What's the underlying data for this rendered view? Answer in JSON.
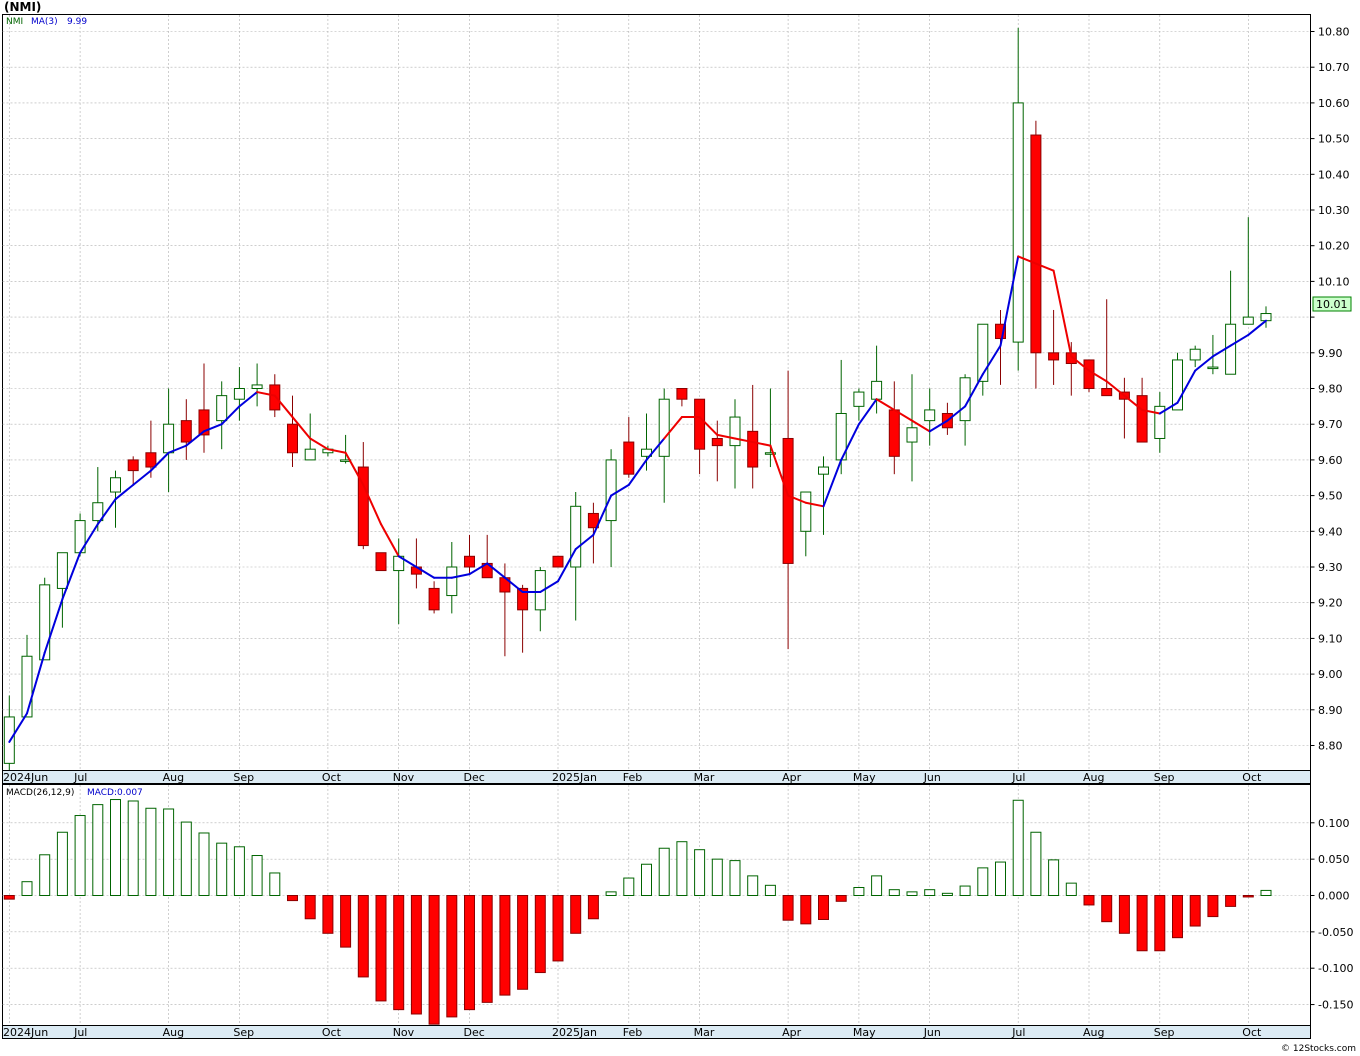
{
  "title": "(NMI)",
  "footer": "© 12Stocks.com",
  "chart_data": [
    {
      "type": "candlestick",
      "name": "price-panel",
      "legend": {
        "symbol": "NMI",
        "ma_label": "MA(3)",
        "ma_value": "9.99"
      },
      "last_price": "10.01",
      "ylim": [
        8.72,
        10.83
      ],
      "y_ticks": [
        8.8,
        8.9,
        9.0,
        9.1,
        9.2,
        9.3,
        9.4,
        9.5,
        9.6,
        9.7,
        9.8,
        9.9,
        10.0,
        10.1,
        10.2,
        10.3,
        10.4,
        10.5,
        10.6,
        10.7,
        10.8
      ],
      "y_tick_labels": [
        "8.80",
        "8.90",
        "9.00",
        "9.10",
        "9.20",
        "9.30",
        "9.40",
        "9.50",
        "9.60",
        "9.70",
        "9.80",
        "9.90",
        "",
        "10.10",
        "10.20",
        "10.30",
        "10.40",
        "10.50",
        "10.60",
        "10.70",
        "10.80"
      ],
      "x_labels": [
        "2024Jun",
        "Jul",
        "Aug",
        "Sep",
        "Oct",
        "Nov",
        "Dec",
        "2025Jan",
        "Feb",
        "Mar",
        "Apr",
        "May",
        "Jun",
        "Jul",
        "Aug",
        "Sep",
        "Oct"
      ],
      "x_label_weeks": [
        0,
        4,
        9,
        13,
        18,
        22,
        26,
        31,
        35,
        39,
        44,
        48,
        52,
        57,
        61,
        65,
        70
      ],
      "candles": [
        {
          "o": 8.75,
          "h": 8.94,
          "l": 8.73,
          "c": 8.88
        },
        {
          "o": 8.88,
          "h": 9.11,
          "l": 8.88,
          "c": 9.05
        },
        {
          "o": 9.04,
          "h": 9.27,
          "l": 9.04,
          "c": 9.25
        },
        {
          "o": 9.24,
          "h": 9.34,
          "l": 9.13,
          "c": 9.34
        },
        {
          "o": 9.34,
          "h": 9.45,
          "l": 9.33,
          "c": 9.43
        },
        {
          "o": 9.43,
          "h": 9.58,
          "l": 9.4,
          "c": 9.48
        },
        {
          "o": 9.51,
          "h": 9.57,
          "l": 9.41,
          "c": 9.55
        },
        {
          "o": 9.6,
          "h": 9.61,
          "l": 9.53,
          "c": 9.57
        },
        {
          "o": 9.62,
          "h": 9.71,
          "l": 9.55,
          "c": 9.58
        },
        {
          "o": 9.62,
          "h": 9.8,
          "l": 9.51,
          "c": 9.7
        },
        {
          "o": 9.71,
          "h": 9.77,
          "l": 9.6,
          "c": 9.65
        },
        {
          "o": 9.74,
          "h": 9.87,
          "l": 9.62,
          "c": 9.67
        },
        {
          "o": 9.71,
          "h": 9.82,
          "l": 9.63,
          "c": 9.78
        },
        {
          "o": 9.77,
          "h": 9.86,
          "l": 9.71,
          "c": 9.8
        },
        {
          "o": 9.8,
          "h": 9.87,
          "l": 9.75,
          "c": 9.81
        },
        {
          "o": 9.81,
          "h": 9.84,
          "l": 9.72,
          "c": 9.74
        },
        {
          "o": 9.7,
          "h": 9.78,
          "l": 9.58,
          "c": 9.62
        },
        {
          "o": 9.6,
          "h": 9.73,
          "l": 9.6,
          "c": 9.63
        },
        {
          "o": 9.62,
          "h": 9.64,
          "l": 9.61,
          "c": 9.63
        },
        {
          "o": 9.6,
          "h": 9.67,
          "l": 9.59,
          "c": 9.6
        },
        {
          "o": 9.58,
          "h": 9.65,
          "l": 9.35,
          "c": 9.36
        },
        {
          "o": 9.34,
          "h": 9.34,
          "l": 9.29,
          "c": 9.29
        },
        {
          "o": 9.29,
          "h": 9.38,
          "l": 9.14,
          "c": 9.33
        },
        {
          "o": 9.3,
          "h": 9.38,
          "l": 9.24,
          "c": 9.28
        },
        {
          "o": 9.24,
          "h": 9.26,
          "l": 9.17,
          "c": 9.18
        },
        {
          "o": 9.22,
          "h": 9.37,
          "l": 9.17,
          "c": 9.3
        },
        {
          "o": 9.33,
          "h": 9.39,
          "l": 9.28,
          "c": 9.3
        },
        {
          "o": 9.31,
          "h": 9.39,
          "l": 9.28,
          "c": 9.27
        },
        {
          "o": 9.27,
          "h": 9.31,
          "l": 9.05,
          "c": 9.23
        },
        {
          "o": 9.24,
          "h": 9.25,
          "l": 9.06,
          "c": 9.18
        },
        {
          "o": 9.18,
          "h": 9.3,
          "l": 9.12,
          "c": 9.29
        },
        {
          "o": 9.33,
          "h": 9.33,
          "l": 9.3,
          "c": 9.3
        },
        {
          "o": 9.3,
          "h": 9.51,
          "l": 9.15,
          "c": 9.47
        },
        {
          "o": 9.45,
          "h": 9.48,
          "l": 9.31,
          "c": 9.41
        },
        {
          "o": 9.43,
          "h": 9.63,
          "l": 9.3,
          "c": 9.6
        },
        {
          "o": 9.65,
          "h": 9.72,
          "l": 9.55,
          "c": 9.56
        },
        {
          "o": 9.61,
          "h": 9.73,
          "l": 9.57,
          "c": 9.63
        },
        {
          "o": 9.61,
          "h": 9.8,
          "l": 9.48,
          "c": 9.77
        },
        {
          "o": 9.8,
          "h": 9.8,
          "l": 9.75,
          "c": 9.77
        },
        {
          "o": 9.77,
          "h": 9.77,
          "l": 9.56,
          "c": 9.63
        },
        {
          "o": 9.66,
          "h": 9.71,
          "l": 9.54,
          "c": 9.64
        },
        {
          "o": 9.64,
          "h": 9.77,
          "l": 9.52,
          "c": 9.72
        },
        {
          "o": 9.68,
          "h": 9.81,
          "l": 9.52,
          "c": 9.58
        },
        {
          "o": 9.62,
          "h": 9.8,
          "l": 9.58,
          "c": 9.62
        },
        {
          "o": 9.66,
          "h": 9.85,
          "l": 9.07,
          "c": 9.31
        },
        {
          "o": 9.4,
          "h": 9.51,
          "l": 9.33,
          "c": 9.51
        },
        {
          "o": 9.56,
          "h": 9.61,
          "l": 9.39,
          "c": 9.58
        },
        {
          "o": 9.6,
          "h": 9.88,
          "l": 9.56,
          "c": 9.73
        },
        {
          "o": 9.75,
          "h": 9.8,
          "l": 9.71,
          "c": 9.79
        },
        {
          "o": 9.77,
          "h": 9.92,
          "l": 9.73,
          "c": 9.82
        },
        {
          "o": 9.74,
          "h": 9.82,
          "l": 9.56,
          "c": 9.61
        },
        {
          "o": 9.65,
          "h": 9.84,
          "l": 9.54,
          "c": 9.69
        },
        {
          "o": 9.71,
          "h": 9.8,
          "l": 9.64,
          "c": 9.74
        },
        {
          "o": 9.73,
          "h": 9.76,
          "l": 9.67,
          "c": 9.69
        },
        {
          "o": 9.71,
          "h": 9.84,
          "l": 9.64,
          "c": 9.83
        },
        {
          "o": 9.82,
          "h": 9.98,
          "l": 9.78,
          "c": 9.98
        },
        {
          "o": 9.98,
          "h": 10.02,
          "l": 9.81,
          "c": 9.94
        },
        {
          "o": 9.93,
          "h": 10.81,
          "l": 9.85,
          "c": 10.6
        },
        {
          "o": 10.51,
          "h": 10.55,
          "l": 9.8,
          "c": 9.9
        },
        {
          "o": 9.9,
          "h": 10.02,
          "l": 9.81,
          "c": 9.88
        },
        {
          "o": 9.9,
          "h": 9.93,
          "l": 9.78,
          "c": 9.87
        },
        {
          "o": 9.88,
          "h": 9.88,
          "l": 9.79,
          "c": 9.8
        },
        {
          "o": 9.8,
          "h": 10.05,
          "l": 9.79,
          "c": 9.78
        },
        {
          "o": 9.79,
          "h": 9.83,
          "l": 9.66,
          "c": 9.77
        },
        {
          "o": 9.78,
          "h": 9.83,
          "l": 9.65,
          "c": 9.65
        },
        {
          "o": 9.66,
          "h": 9.79,
          "l": 9.62,
          "c": 9.75
        },
        {
          "o": 9.74,
          "h": 9.9,
          "l": 9.74,
          "c": 9.88
        },
        {
          "o": 9.88,
          "h": 9.92,
          "l": 9.86,
          "c": 9.91
        },
        {
          "o": 9.86,
          "h": 9.95,
          "l": 9.84,
          "c": 9.86
        },
        {
          "o": 9.84,
          "h": 10.13,
          "l": 9.84,
          "c": 9.98
        },
        {
          "o": 9.98,
          "h": 10.28,
          "l": 9.98,
          "c": 10.0
        },
        {
          "o": 9.99,
          "h": 10.03,
          "l": 9.97,
          "c": 10.01
        }
      ],
      "ma": [
        8.81,
        8.89,
        9.06,
        9.21,
        9.34,
        9.42,
        9.49,
        9.53,
        9.57,
        9.62,
        9.64,
        9.68,
        9.7,
        9.75,
        9.79,
        9.78,
        9.72,
        9.66,
        9.63,
        9.62,
        9.53,
        9.42,
        9.33,
        9.3,
        9.27,
        9.27,
        9.28,
        9.31,
        9.27,
        9.23,
        9.23,
        9.26,
        9.35,
        9.39,
        9.5,
        9.53,
        9.6,
        9.66,
        9.72,
        9.72,
        9.67,
        9.66,
        9.65,
        9.64,
        9.5,
        9.48,
        9.47,
        9.6,
        9.7,
        9.77,
        9.74,
        9.71,
        9.68,
        9.71,
        9.75,
        9.84,
        9.92,
        10.17,
        10.15,
        10.13,
        9.89,
        9.85,
        9.82,
        9.78,
        9.74,
        9.73,
        9.76,
        9.85,
        9.89,
        9.92,
        9.95,
        9.99
      ],
      "ma_trend": [
        "up",
        "up",
        "up",
        "up",
        "up",
        "up",
        "up",
        "up",
        "up",
        "up",
        "up",
        "up",
        "up",
        "up",
        "up",
        "down",
        "down",
        "down",
        "down",
        "down",
        "down",
        "down",
        "down",
        "up",
        "up",
        "up",
        "up",
        "up",
        "up",
        "up",
        "up",
        "up",
        "up",
        "up",
        "up",
        "up",
        "up",
        "up",
        "down",
        "down",
        "down",
        "down",
        "down",
        "down",
        "down",
        "down",
        "down",
        "up",
        "up",
        "up",
        "down",
        "down",
        "down",
        "up",
        "up",
        "up",
        "up",
        "up",
        "down",
        "down",
        "down",
        "down",
        "down",
        "down",
        "down",
        "down",
        "up",
        "up",
        "up",
        "up",
        "up",
        "up"
      ]
    },
    {
      "type": "bar",
      "name": "macd-panel",
      "legend": {
        "label": "MACD(26,12,9)",
        "value_label": "MACD:0.007"
      },
      "ylim": [
        -0.18,
        0.14
      ],
      "y_ticks": [
        -0.15,
        -0.1,
        -0.05,
        0.0,
        0.05,
        0.1
      ],
      "y_tick_labels": [
        "-0.150",
        "-0.100",
        "-0.050",
        "0.000",
        "0.050",
        "0.100"
      ],
      "x_labels": [
        "2024Jun",
        "Jul",
        "Aug",
        "Sep",
        "Oct",
        "Nov",
        "Dec",
        "2025Jan",
        "Feb",
        "Mar",
        "Apr",
        "May",
        "Jun",
        "Jul",
        "Aug",
        "Sep",
        "Oct"
      ],
      "x_label_weeks": [
        0,
        4,
        9,
        13,
        18,
        22,
        26,
        31,
        35,
        39,
        44,
        48,
        52,
        57,
        61,
        65,
        70
      ],
      "values": [
        -0.005,
        0.019,
        0.056,
        0.087,
        0.11,
        0.125,
        0.132,
        0.13,
        0.12,
        0.119,
        0.101,
        0.086,
        0.072,
        0.067,
        0.055,
        0.031,
        -0.007,
        -0.032,
        -0.052,
        -0.071,
        -0.112,
        -0.145,
        -0.157,
        -0.163,
        -0.177,
        -0.167,
        -0.157,
        -0.147,
        -0.137,
        -0.129,
        -0.106,
        -0.09,
        -0.052,
        -0.032,
        0.005,
        0.024,
        0.043,
        0.065,
        0.074,
        0.063,
        0.05,
        0.048,
        0.027,
        0.014,
        -0.034,
        -0.039,
        -0.033,
        -0.008,
        0.011,
        0.027,
        0.008,
        0.005,
        0.008,
        0.003,
        0.013,
        0.038,
        0.046,
        0.131,
        0.087,
        0.049,
        0.017,
        -0.013,
        -0.036,
        -0.052,
        -0.076,
        -0.076,
        -0.058,
        -0.042,
        -0.029,
        -0.015,
        -0.002,
        0.007
      ]
    }
  ]
}
